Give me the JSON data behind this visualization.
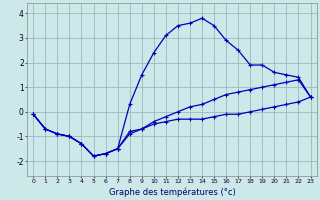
{
  "xlabel": "Graphe des températures (°c)",
  "background_color": "#cce8e8",
  "grid_color": "#99bbbb",
  "line_color": "#0000bb",
  "hours": [
    0,
    1,
    2,
    3,
    4,
    5,
    6,
    7,
    8,
    9,
    10,
    11,
    12,
    13,
    14,
    15,
    16,
    17,
    18,
    19,
    20,
    21,
    22,
    23
  ],
  "line_peak": [
    -0.1,
    -0.7,
    -0.9,
    -1.0,
    -1.3,
    -1.8,
    -1.7,
    -1.5,
    0.3,
    1.5,
    2.4,
    3.1,
    3.5,
    3.6,
    3.8,
    3.5,
    2.9,
    2.5,
    1.9,
    1.9,
    1.6,
    1.5,
    1.4,
    0.6
  ],
  "line_flat": [
    -0.1,
    -0.7,
    -0.9,
    -1.0,
    -1.3,
    -1.8,
    -1.7,
    -1.5,
    -0.8,
    -0.7,
    -0.5,
    -0.4,
    -0.3,
    -0.3,
    -0.3,
    -0.2,
    -0.1,
    -0.1,
    0.0,
    0.1,
    0.2,
    0.3,
    0.4,
    0.6
  ],
  "line_rise": [
    -0.1,
    -0.7,
    -0.9,
    -1.0,
    -1.3,
    -1.8,
    -1.7,
    -1.5,
    -0.9,
    -0.7,
    -0.4,
    -0.2,
    0.0,
    0.2,
    0.3,
    0.5,
    0.7,
    0.8,
    0.9,
    1.0,
    1.1,
    1.2,
    1.3,
    0.6
  ],
  "ylim": [
    -2.6,
    4.4
  ],
  "yticks": [
    -2,
    -1,
    0,
    1,
    2,
    3,
    4
  ],
  "xtick_labels": [
    "0",
    "1",
    "2",
    "3",
    "4",
    "5",
    "6",
    "7",
    "8",
    "9",
    "10",
    "11",
    "12",
    "13",
    "14",
    "15",
    "16",
    "17",
    "18",
    "19",
    "20",
    "21",
    "22",
    "23"
  ],
  "xlim": [
    -0.5,
    23.5
  ]
}
